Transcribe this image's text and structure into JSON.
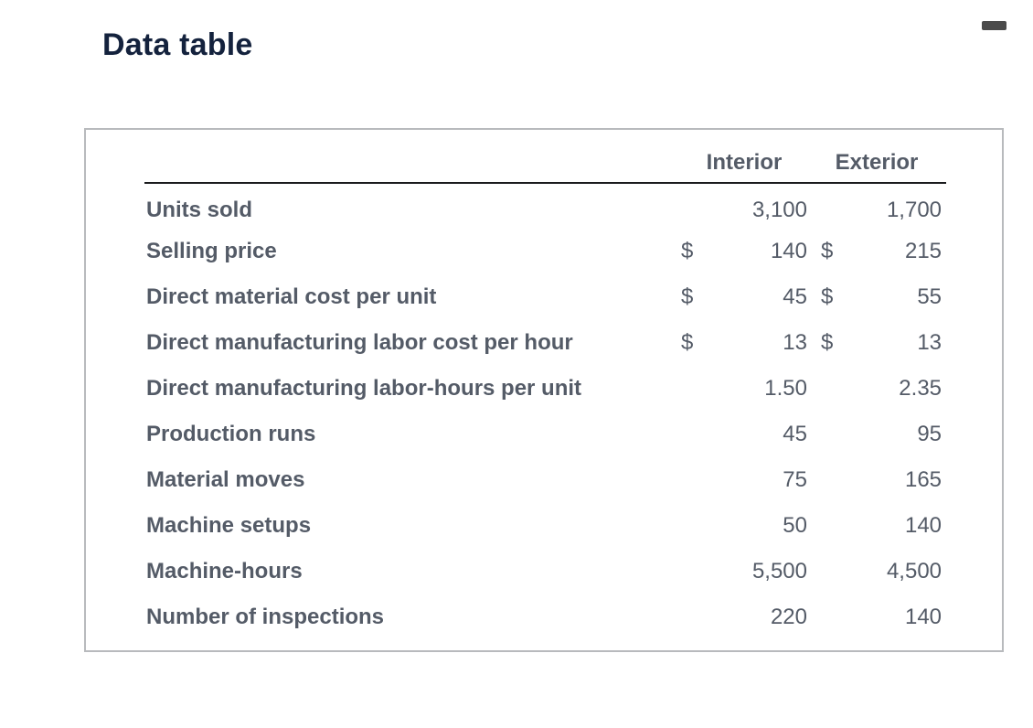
{
  "window": {
    "title": "Data table"
  },
  "controls": {
    "minimize_icon": "minus-dash"
  },
  "table": {
    "column_headers": [
      "Interior",
      "Exterior"
    ],
    "rows": [
      {
        "label": "Units sold",
        "int_cur": "",
        "int_val": "3,100",
        "ext_cur": "",
        "ext_val": "1,700"
      },
      {
        "label": "Selling price",
        "int_cur": "$",
        "int_val": "140",
        "ext_cur": "$",
        "ext_val": "215"
      },
      {
        "label": "Direct material cost per unit",
        "int_cur": "$",
        "int_val": "45",
        "ext_cur": "$",
        "ext_val": "55"
      },
      {
        "label": "Direct manufacturing labor cost per hour",
        "int_cur": "$",
        "int_val": "13",
        "ext_cur": "$",
        "ext_val": "13"
      },
      {
        "label": "Direct manufacturing labor-hours per unit",
        "int_cur": "",
        "int_val": "1.50",
        "ext_cur": "",
        "ext_val": "2.35"
      },
      {
        "label": "Production runs",
        "int_cur": "",
        "int_val": "45",
        "ext_cur": "",
        "ext_val": "95"
      },
      {
        "label": "Material moves",
        "int_cur": "",
        "int_val": "75",
        "ext_cur": "",
        "ext_val": "165"
      },
      {
        "label": "Machine setups",
        "int_cur": "",
        "int_val": "50",
        "ext_cur": "",
        "ext_val": "140"
      },
      {
        "label": "Machine-hours",
        "int_cur": "",
        "int_val": "5,500",
        "ext_cur": "",
        "ext_val": "4,500"
      },
      {
        "label": "Number of inspections",
        "int_cur": "",
        "int_val": "220",
        "ext_cur": "",
        "ext_val": "140"
      }
    ]
  },
  "colors": {
    "title_text": "#14223d",
    "table_text": "#545b67",
    "header_rule": "#1a1b1d",
    "panel_border": "#b8babd",
    "minimize_dash": "#4b4b4b"
  }
}
